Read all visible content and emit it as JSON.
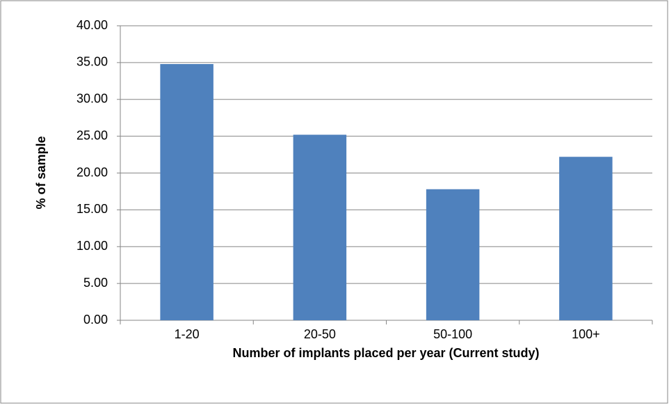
{
  "chart_data": {
    "type": "bar",
    "x_label": "Number of implants placed per year (Current study)",
    "y_label": "% of sample",
    "categories": [
      "1-20",
      "20-50",
      "50-100",
      "100+"
    ],
    "values": [
      34.8,
      25.2,
      17.8,
      22.2
    ],
    "color": "#4f81bd",
    "ylim": [
      0,
      40
    ],
    "yticks": [
      {
        "value": 0,
        "label": "0.00"
      },
      {
        "value": 5,
        "label": "5.00"
      },
      {
        "value": 10,
        "label": "10.00"
      },
      {
        "value": 15,
        "label": "15.00"
      },
      {
        "value": 20,
        "label": "20.00"
      },
      {
        "value": 25,
        "label": "25.00"
      },
      {
        "value": 30,
        "label": "30.00"
      },
      {
        "value": 35,
        "label": "35.00"
      },
      {
        "value": 40,
        "label": "40.00"
      }
    ],
    "grid": true
  }
}
